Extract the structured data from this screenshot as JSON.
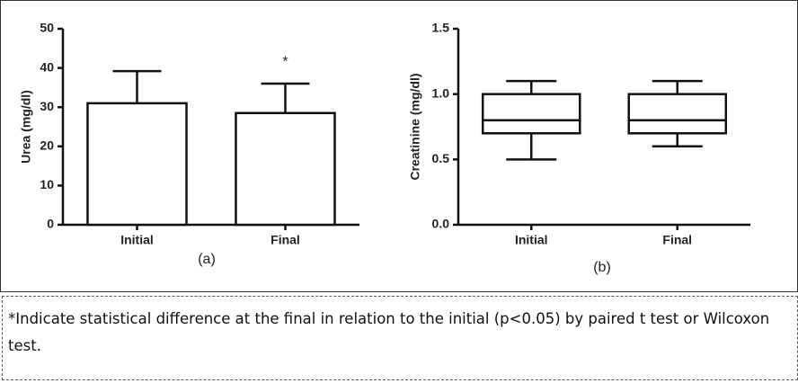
{
  "chart_data": [
    {
      "type": "bar",
      "ylabel": "Urea (mg/dl)",
      "subtitle": "(a)",
      "categories": [
        "Initial",
        "Final"
      ],
      "values": [
        31,
        28.5
      ],
      "errors": [
        8.2,
        7.5
      ],
      "color": "#ffffff",
      "ylim": [
        0,
        50
      ],
      "yticks": [
        0,
        10,
        20,
        30,
        40,
        50
      ],
      "annotations": [
        {
          "text": "*",
          "x": "Final"
        }
      ]
    },
    {
      "type": "box",
      "ylabel": "Creatinine (mg/dl)",
      "subtitle": "(b)",
      "categories": [
        "Initial",
        "Final"
      ],
      "values": [
        {
          "min": 0.5,
          "q1": 0.7,
          "median": 0.8,
          "q3": 1.0,
          "max": 1.1
        },
        {
          "min": 0.6,
          "q1": 0.7,
          "median": 0.8,
          "q3": 1.0,
          "max": 1.1
        }
      ],
      "color": "#ffffff",
      "ylim": [
        0,
        1.5
      ],
      "yticks": [
        {
          "value": 0,
          "label": "0.0"
        },
        0.5,
        {
          "value": 1,
          "label": "1.0"
        },
        1.5
      ]
    }
  ],
  "caption": "*Indicate statistical difference at the final in relation to the initial (p<0.05) by paired t test or Wilcoxon test."
}
